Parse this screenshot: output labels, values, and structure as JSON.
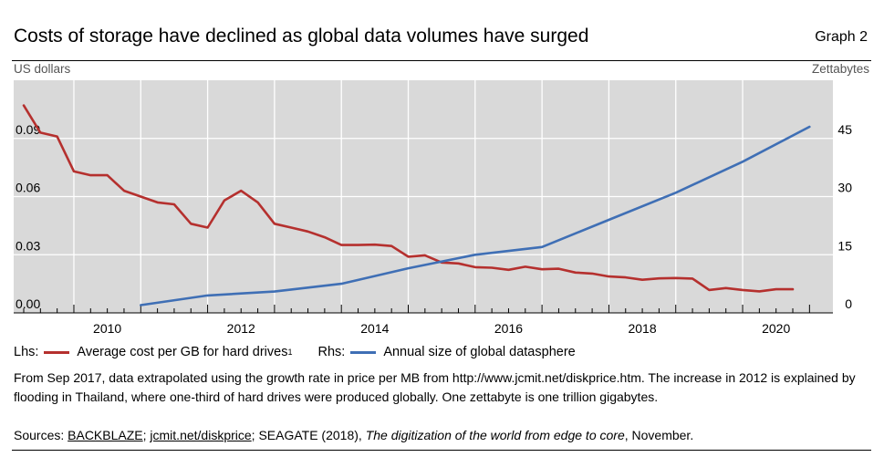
{
  "header": {
    "title": "Costs of storage have declined as global data volumes have surged",
    "graph_label": "Graph 2"
  },
  "chart_data": {
    "type": "line",
    "left_unit": "US dollars",
    "right_unit": "Zettabytes",
    "x_range": [
      2008.6,
      2020.85
    ],
    "y_left_range": [
      0,
      0.12
    ],
    "y_right_range": [
      0,
      60
    ],
    "y_left_ticks": [
      0.0,
      0.03,
      0.06,
      0.09
    ],
    "y_left_tick_labels": [
      "0.00",
      "0.03",
      "0.06",
      "0.09"
    ],
    "y_right_ticks": [
      0,
      15,
      30,
      45
    ],
    "y_right_tick_labels": [
      "0",
      "15",
      "30",
      "45"
    ],
    "x_major_ticks": [
      2009.5,
      2010.5,
      2011.5,
      2012.5,
      2013.5,
      2014.5,
      2015.5,
      2016.5,
      2017.5,
      2018.5,
      2019.5
    ],
    "x_label_positions": [
      2010,
      2012,
      2014,
      2016,
      2018,
      2020
    ],
    "x_tick_labels": [
      "2010",
      "2012",
      "2014",
      "2016",
      "2018",
      "2020"
    ],
    "grid": true,
    "series": [
      {
        "name": "Average cost per GB for hard drives",
        "axis": "left",
        "color": "#b5302e",
        "points": [
          [
            2008.75,
            0.107
          ],
          [
            2009.0,
            0.093
          ],
          [
            2009.25,
            0.091
          ],
          [
            2009.5,
            0.073
          ],
          [
            2009.75,
            0.071
          ],
          [
            2010.0,
            0.071
          ],
          [
            2010.25,
            0.063
          ],
          [
            2010.5,
            0.06
          ],
          [
            2010.75,
            0.057
          ],
          [
            2011.0,
            0.056
          ],
          [
            2011.25,
            0.046
          ],
          [
            2011.5,
            0.044
          ],
          [
            2011.75,
            0.058
          ],
          [
            2012.0,
            0.063
          ],
          [
            2012.25,
            0.057
          ],
          [
            2012.5,
            0.046
          ],
          [
            2012.75,
            0.044
          ],
          [
            2013.0,
            0.042
          ],
          [
            2013.25,
            0.039
          ],
          [
            2013.5,
            0.035
          ],
          [
            2013.75,
            0.035
          ],
          [
            2014.0,
            0.0352
          ],
          [
            2014.25,
            0.0345
          ],
          [
            2014.5,
            0.029
          ],
          [
            2014.75,
            0.0297
          ],
          [
            2015.0,
            0.026
          ],
          [
            2015.25,
            0.0255
          ],
          [
            2015.5,
            0.0236
          ],
          [
            2015.75,
            0.0233
          ],
          [
            2016.0,
            0.0222
          ],
          [
            2016.25,
            0.0238
          ],
          [
            2016.5,
            0.0225
          ],
          [
            2016.75,
            0.0228
          ],
          [
            2017.0,
            0.0208
          ],
          [
            2017.25,
            0.0203
          ],
          [
            2017.5,
            0.0188
          ],
          [
            2017.75,
            0.0183
          ],
          [
            2018.0,
            0.0171
          ],
          [
            2018.25,
            0.0178
          ],
          [
            2018.5,
            0.018
          ],
          [
            2018.75,
            0.0177
          ],
          [
            2019.0,
            0.0118
          ],
          [
            2019.25,
            0.0128
          ],
          [
            2019.5,
            0.0118
          ],
          [
            2019.75,
            0.0111
          ],
          [
            2020.0,
            0.0122
          ],
          [
            2020.25,
            0.0122
          ]
        ]
      },
      {
        "name": "Annual size of global datasphere",
        "axis": "right",
        "color": "#3f6fb5",
        "points": [
          [
            2010.5,
            2.0
          ],
          [
            2011.5,
            4.5
          ],
          [
            2012.5,
            5.5
          ],
          [
            2013.5,
            7.5
          ],
          [
            2014.5,
            11.5
          ],
          [
            2015.5,
            15.0
          ],
          [
            2016.5,
            17.0
          ],
          [
            2017.5,
            24.0
          ],
          [
            2018.5,
            31.0
          ],
          [
            2019.5,
            39.0
          ],
          [
            2020.5,
            48.0
          ]
        ]
      }
    ]
  },
  "legend": {
    "lhs_prefix": "Lhs:",
    "lhs_label": "Average cost per GB for hard drives",
    "lhs_footnote": "1",
    "rhs_prefix": "Rhs:",
    "rhs_label": "Annual size of global datasphere"
  },
  "note": "From Sep 2017, data extrapolated using the growth rate in price per MB from http://www.jcmit.net/diskprice.htm. The increase in 2012 is explained by flooding in Thailand, where one-third of hard drives were produced globally. One zettabyte is one trillion gigabytes.",
  "sources": {
    "prefix": "Sources:",
    "s1": "BACKBLAZE",
    "sep1": ";",
    "s2": "jcmit.net/diskprice",
    "sep2": "; SEAGATE (2018),",
    "s3_title": "The digitization of the world from edge to core",
    "s3_suffix": ", November."
  }
}
